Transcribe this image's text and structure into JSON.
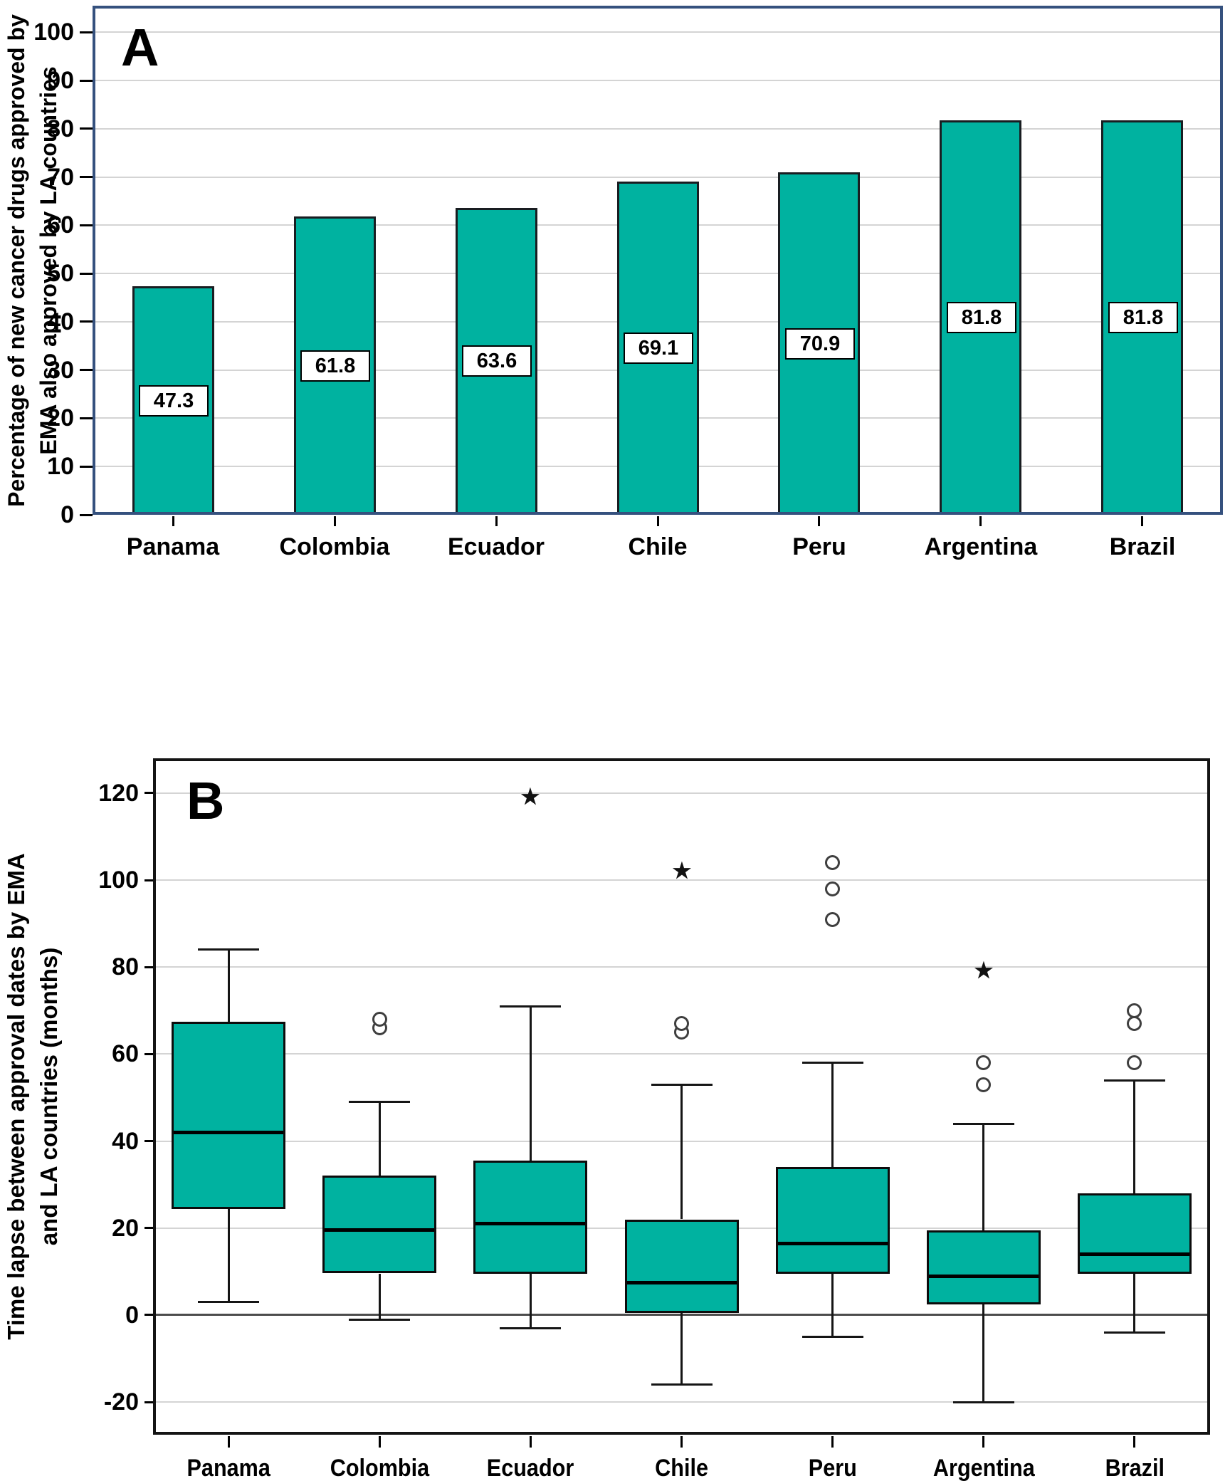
{
  "style_colors": {
    "teal_fill": "#00b2a0",
    "panel_a_border": "#35517e",
    "panel_b_border": "#141414",
    "gridline": "#d4d4d4",
    "zero_line": "#4c4c4c",
    "outlier_stroke": "#3f3f3f"
  },
  "chart_data": [
    {
      "type": "bar",
      "panel_label": "A",
      "title": "",
      "ylabel_lines": [
        "Percentage of new cancer drugs approved by",
        "EMA also approved by LA countries"
      ],
      "categories": [
        "Panama",
        "Colombia",
        "Ecuador",
        "Chile",
        "Peru",
        "Argentina",
        "Brazil"
      ],
      "values": [
        47.3,
        61.8,
        63.6,
        69.1,
        70.9,
        81.8,
        81.8
      ],
      "value_labels": [
        "47.3",
        "61.8",
        "63.6",
        "69.1",
        "70.9",
        "81.8",
        "81.8"
      ],
      "yticks": [
        0,
        10,
        20,
        30,
        40,
        50,
        60,
        70,
        80,
        90,
        100
      ],
      "ylim": [
        0,
        105.5
      ],
      "grid": true,
      "legend": false
    },
    {
      "type": "box",
      "panel_label": "B",
      "title": "",
      "ylabel_lines": [
        "Time lapse between approval dates by EMA",
        "and LA countries (months)"
      ],
      "categories": [
        "Panama",
        "Colombia",
        "Ecuador",
        "Chile",
        "Peru",
        "Argentina",
        "Brazil"
      ],
      "series": [
        {
          "name": "Panama",
          "whisker_low": 3,
          "q1": 24.5,
          "median": 42,
          "q3": 67.5,
          "whisker_high": 84,
          "outliers_circle": [],
          "outliers_star": []
        },
        {
          "name": "Colombia",
          "whisker_low": -1,
          "q1": 9.5,
          "median": 19.5,
          "q3": 32,
          "whisker_high": 49,
          "outliers_circle": [
            66,
            68
          ],
          "outliers_star": []
        },
        {
          "name": "Ecuador",
          "whisker_low": -3,
          "q1": 9.5,
          "median": 21,
          "q3": 35.5,
          "whisker_high": 71,
          "outliers_circle": [],
          "outliers_star": [
            119
          ]
        },
        {
          "name": "Chile",
          "whisker_low": -16,
          "q1": 0.5,
          "median": 7.5,
          "q3": 22,
          "whisker_high": 53,
          "outliers_circle": [
            65,
            67
          ],
          "outliers_star": [
            102
          ]
        },
        {
          "name": "Peru",
          "whisker_low": -5,
          "q1": 9.5,
          "median": 16.5,
          "q3": 34,
          "whisker_high": 58,
          "outliers_circle": [
            91,
            98,
            104
          ],
          "outliers_star": []
        },
        {
          "name": "Argentina",
          "whisker_low": -20,
          "q1": 2.5,
          "median": 9,
          "q3": 19.5,
          "whisker_high": 44,
          "outliers_circle": [
            53,
            58
          ],
          "outliers_star": [
            79
          ]
        },
        {
          "name": "Brazil",
          "whisker_low": -4,
          "q1": 9.5,
          "median": 14,
          "q3": 28,
          "whisker_high": 54,
          "outliers_circle": [
            58,
            67,
            70
          ],
          "outliers_star": []
        }
      ],
      "yticks": [
        -20,
        0,
        20,
        40,
        60,
        80,
        100,
        120
      ],
      "ylim": [
        -27.5,
        128
      ],
      "zero_reference_line": true,
      "grid": true,
      "legend": false
    }
  ]
}
